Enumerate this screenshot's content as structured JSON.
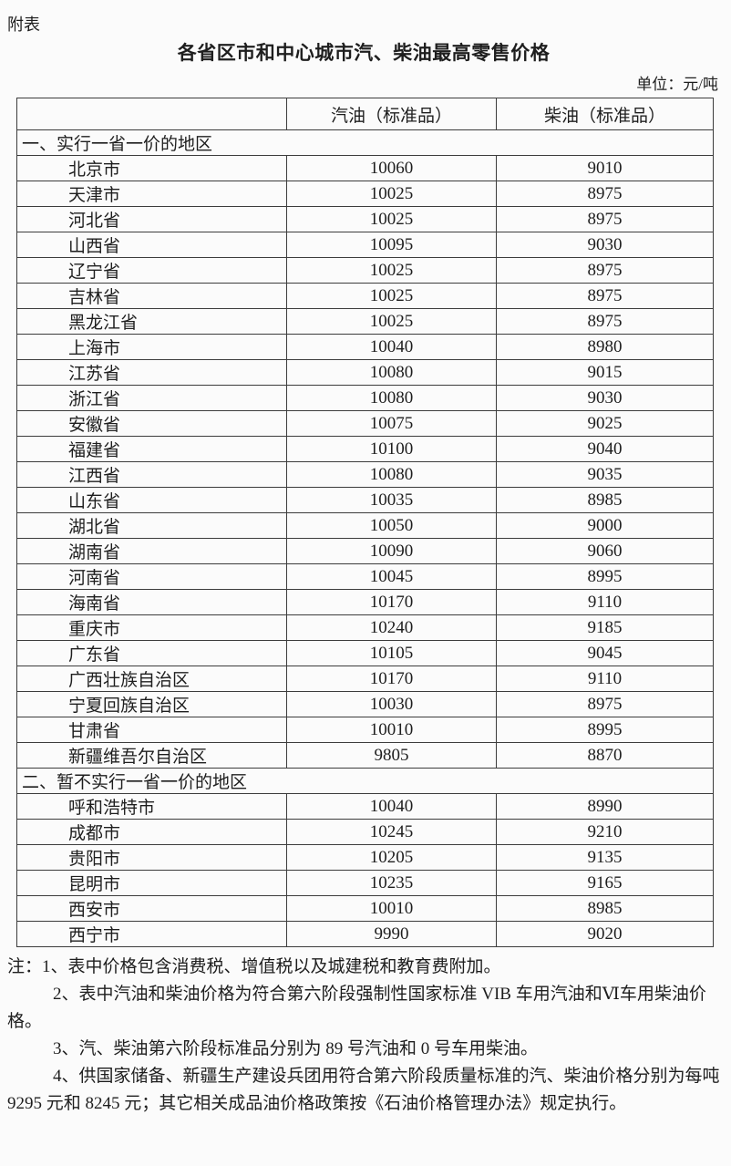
{
  "page": {
    "attachment_label": "附表",
    "title": "各省区市和中心城市汽、柴油最高零售价格",
    "unit_label": "单位：元/吨"
  },
  "table": {
    "columns": [
      "",
      "汽油（标准品）",
      "柴油（标准品）"
    ],
    "sections": [
      {
        "label": "一、实行一省一价的地区",
        "rows": [
          {
            "region": "北京市",
            "gasoline": "10060",
            "diesel": "9010"
          },
          {
            "region": "天津市",
            "gasoline": "10025",
            "diesel": "8975"
          },
          {
            "region": "河北省",
            "gasoline": "10025",
            "diesel": "8975"
          },
          {
            "region": "山西省",
            "gasoline": "10095",
            "diesel": "9030"
          },
          {
            "region": "辽宁省",
            "gasoline": "10025",
            "diesel": "8975"
          },
          {
            "region": "吉林省",
            "gasoline": "10025",
            "diesel": "8975"
          },
          {
            "region": "黑龙江省",
            "gasoline": "10025",
            "diesel": "8975"
          },
          {
            "region": "上海市",
            "gasoline": "10040",
            "diesel": "8980"
          },
          {
            "region": "江苏省",
            "gasoline": "10080",
            "diesel": "9015"
          },
          {
            "region": "浙江省",
            "gasoline": "10080",
            "diesel": "9030"
          },
          {
            "region": "安徽省",
            "gasoline": "10075",
            "diesel": "9025"
          },
          {
            "region": "福建省",
            "gasoline": "10100",
            "diesel": "9040"
          },
          {
            "region": "江西省",
            "gasoline": "10080",
            "diesel": "9035"
          },
          {
            "region": "山东省",
            "gasoline": "10035",
            "diesel": "8985"
          },
          {
            "region": "湖北省",
            "gasoline": "10050",
            "diesel": "9000"
          },
          {
            "region": "湖南省",
            "gasoline": "10090",
            "diesel": "9060"
          },
          {
            "region": "河南省",
            "gasoline": "10045",
            "diesel": "8995"
          },
          {
            "region": "海南省",
            "gasoline": "10170",
            "diesel": "9110"
          },
          {
            "region": "重庆市",
            "gasoline": "10240",
            "diesel": "9185"
          },
          {
            "region": "广东省",
            "gasoline": "10105",
            "diesel": "9045"
          },
          {
            "region": "广西壮族自治区",
            "gasoline": "10170",
            "diesel": "9110"
          },
          {
            "region": "宁夏回族自治区",
            "gasoline": "10030",
            "diesel": "8975"
          },
          {
            "region": "甘肃省",
            "gasoline": "10010",
            "diesel": "8995"
          },
          {
            "region": "新疆维吾尔自治区",
            "gasoline": "9805",
            "diesel": "8870"
          }
        ]
      },
      {
        "label": "二、暂不实行一省一价的地区",
        "rows": [
          {
            "region": "呼和浩特市",
            "gasoline": "10040",
            "diesel": "8990"
          },
          {
            "region": "成都市",
            "gasoline": "10245",
            "diesel": "9210"
          },
          {
            "region": "贵阳市",
            "gasoline": "10205",
            "diesel": "9135"
          },
          {
            "region": "昆明市",
            "gasoline": "10235",
            "diesel": "9165"
          },
          {
            "region": "西安市",
            "gasoline": "10010",
            "diesel": "8985"
          },
          {
            "region": "西宁市",
            "gasoline": "9990",
            "diesel": "9020"
          }
        ]
      }
    ]
  },
  "notes": [
    {
      "text": "注：1、表中价格包含消费税、增值税以及城建税和教育费附加。",
      "indent": false
    },
    {
      "text": "2、表中汽油和柴油价格为符合第六阶段强制性国家标准 VIB 车用汽油和Ⅵ车用柴油价格。",
      "indent": true
    },
    {
      "text": "3、汽、柴油第六阶段标准品分别为 89 号汽油和 0 号车用柴油。",
      "indent": true
    },
    {
      "text": "4、供国家储备、新疆生产建设兵团用符合第六阶段质量标准的汽、柴油价格分别为每吨 9295 元和 8245 元；其它相关成品油价格政策按《石油价格管理办法》规定执行。",
      "indent": true
    }
  ],
  "colors": {
    "text": "#1e1e1e",
    "border": "#3c3c3c",
    "background": "#fbfbfb"
  }
}
